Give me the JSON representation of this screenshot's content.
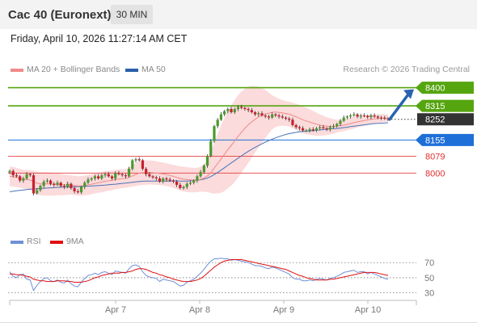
{
  "header": {
    "title": "Cac 40 (Euronext)",
    "timeframe": "30 MIN"
  },
  "timestamp": "Friday, April 10, 2026 11:27:14 AM CET",
  "credit": "Research © 2026 Trading Central",
  "colors": {
    "up_candle": "#4b9a2c",
    "down_candle": "#c8202f",
    "ma20": "#f08a8a",
    "ma50": "#4a72b8",
    "bollinger_fill": "#f9cccc",
    "resistance": "#55a50e",
    "support": "#1f6fd8",
    "support_minor": "#e23030",
    "current": "#333333",
    "rsi": "#6f8fd8",
    "rsi_ma": "#e01010",
    "arrow": "#2a64b0"
  },
  "chart_data": [
    {
      "type": "candlestick",
      "legend": [
        {
          "label": "MA 20 + Bollinger Bands",
          "color": "#f08a8a"
        },
        {
          "label": "MA 50",
          "color": "#2a5fa8"
        }
      ],
      "x_ticks": [
        "Apr 7",
        "Apr 8",
        "Apr 9",
        "Apr 10"
      ],
      "levels": [
        {
          "value": 8400,
          "label": "8400",
          "kind": "resistance"
        },
        {
          "value": 8315,
          "label": "8315",
          "kind": "resistance"
        },
        {
          "value": 8252,
          "label": "8252",
          "kind": "current"
        },
        {
          "value": 8155,
          "label": "8155",
          "kind": "support"
        },
        {
          "value": 8079,
          "label": "8079",
          "kind": "support-minor"
        },
        {
          "value": 8000,
          "label": "8000",
          "kind": "support-minor"
        }
      ],
      "projection": {
        "from": 8252,
        "to": 8400,
        "direction": "up"
      },
      "ylim": [
        7820,
        8440
      ],
      "close": [
        8010,
        7990,
        7985,
        7965,
        7975,
        7995,
        7990,
        7905,
        7920,
        7940,
        7960,
        7965,
        7950,
        7945,
        7955,
        7940,
        7935,
        7950,
        7930,
        7915,
        7910,
        7935,
        7955,
        7970,
        7975,
        7985,
        7975,
        7990,
        7995,
        7985,
        7975,
        8000,
        7995,
        7990,
        7985,
        8020,
        8060,
        8065,
        8060,
        8020,
        7995,
        7985,
        7980,
        7975,
        7960,
        7975,
        7970,
        7965,
        7960,
        7945,
        7930,
        7935,
        7950,
        7955,
        7965,
        7985,
        8005,
        8035,
        8080,
        8150,
        8220,
        8250,
        8275,
        8290,
        8300,
        8285,
        8300,
        8310,
        8305,
        8300,
        8295,
        8285,
        8275,
        8280,
        8270,
        8265,
        8260,
        8275,
        8270,
        8265,
        8260,
        8255,
        8250,
        8225,
        8215,
        8210,
        8200,
        8200,
        8205,
        8200,
        8210,
        8215,
        8210,
        8205,
        8215,
        8220,
        8230,
        8245,
        8260,
        8265,
        8270,
        8275,
        8265,
        8270,
        8268,
        8262,
        8270,
        8265,
        8260,
        8258,
        8255,
        8252
      ],
      "ma20": [
        7985,
        7983,
        7980,
        7976,
        7972,
        7970,
        7968,
        7960,
        7953,
        7950,
        7949,
        7950,
        7949,
        7947,
        7948,
        7947,
        7945,
        7945,
        7944,
        7942,
        7940,
        7940,
        7942,
        7945,
        7948,
        7952,
        7955,
        7958,
        7962,
        7964,
        7966,
        7970,
        7972,
        7974,
        7975,
        7980,
        7987,
        7994,
        8000,
        8002,
        8003,
        8003,
        8002,
        8000,
        7998,
        7996,
        7993,
        7989,
        7985,
        7980,
        7975,
        7972,
        7970,
        7968,
        7967,
        7968,
        7971,
        7977,
        7987,
        8002,
        8023,
        8045,
        8066,
        8088,
        8110,
        8130,
        8150,
        8172,
        8192,
        8210,
        8226,
        8240,
        8252,
        8263,
        8271,
        8277,
        8281,
        8285,
        8286,
        8284,
        8282,
        8279,
        8276,
        8270,
        8264,
        8257,
        8250,
        8244,
        8239,
        8234,
        8229,
        8225,
        8222,
        8220,
        8219,
        8219,
        8220,
        8222,
        8225,
        8228,
        8232,
        8236,
        8240,
        8243,
        8246,
        8249,
        8252,
        8254,
        8256,
        8257,
        8258,
        8258
      ],
      "ma50": [
        7913,
        7915,
        7917,
        7919,
        7921,
        7923,
        7925,
        7926,
        7927,
        7928,
        7929,
        7930,
        7931,
        7932,
        7933,
        7934,
        7935,
        7935,
        7936,
        7936,
        7937,
        7937,
        7938,
        7939,
        7940,
        7941,
        7942,
        7943,
        7944,
        7946,
        7947,
        7948,
        7950,
        7952,
        7953,
        7955,
        7957,
        7959,
        7961,
        7962,
        7963,
        7963,
        7963,
        7963,
        7963,
        7963,
        7963,
        7963,
        7964,
        7964,
        7963,
        7963,
        7963,
        7964,
        7965,
        7967,
        7969,
        7972,
        7977,
        7984,
        7993,
        8003,
        8014,
        8025,
        8037,
        8048,
        8059,
        8070,
        8081,
        8092,
        8102,
        8112,
        8121,
        8129,
        8137,
        8145,
        8152,
        8159,
        8165,
        8171,
        8176,
        8181,
        8185,
        8188,
        8191,
        8193,
        8195,
        8196,
        8198,
        8199,
        8201,
        8202,
        8204,
        8205,
        8207,
        8208,
        8209,
        8211,
        8213,
        8215,
        8218,
        8220,
        8222,
        8224,
        8226,
        8228,
        8230,
        8232,
        8233,
        8234,
        8235,
        8236
      ],
      "bb_width": [
        46,
        46,
        45,
        44,
        44,
        45,
        46,
        50,
        53,
        54,
        55,
        55,
        54,
        53,
        52,
        50,
        48,
        47,
        45,
        45,
        45,
        46,
        46,
        47,
        47,
        47,
        47,
        48,
        48,
        47,
        46,
        46,
        45,
        44,
        44,
        46,
        50,
        54,
        57,
        58,
        57,
        56,
        56,
        55,
        54,
        54,
        53,
        53,
        54,
        55,
        57,
        58,
        58,
        58,
        57,
        57,
        58,
        64,
        76,
        95,
        120,
        140,
        158,
        172,
        182,
        188,
        192,
        193,
        190,
        185,
        178,
        168,
        156,
        142,
        128,
        112,
        96,
        80,
        70,
        64,
        60,
        58,
        58,
        60,
        62,
        63,
        63,
        62,
        60,
        57,
        54,
        50,
        46,
        42,
        38,
        34,
        30,
        28,
        28,
        28,
        28,
        27,
        26,
        25,
        24,
        23,
        22,
        21,
        20,
        19,
        18,
        17
      ]
    },
    {
      "type": "line",
      "legend": [
        {
          "label": "RSI",
          "color": "#6f8fd8"
        },
        {
          "label": "9MA",
          "color": "#e01010"
        }
      ],
      "y_ticks": [
        "70",
        "50",
        "30"
      ],
      "ylim": [
        20,
        82
      ],
      "levels": [
        70,
        50,
        30
      ],
      "series": [
        {
          "name": "RSI",
          "values": [
            58,
            52,
            50,
            54,
            55,
            48,
            47,
            33,
            40,
            45,
            49,
            50,
            46,
            45,
            47,
            44,
            43,
            47,
            42,
            39,
            38,
            44,
            49,
            53,
            54,
            56,
            54,
            57,
            58,
            56,
            54,
            59,
            58,
            57,
            56,
            62,
            66,
            67,
            65,
            58,
            53,
            51,
            50,
            49,
            45,
            48,
            47,
            46,
            45,
            42,
            39,
            40,
            44,
            46,
            48,
            52,
            56,
            61,
            67,
            72,
            75,
            75,
            76,
            75,
            75,
            73,
            74,
            73,
            72,
            71,
            70,
            68,
            66,
            66,
            65,
            63,
            62,
            64,
            63,
            61,
            59,
            57,
            55,
            50,
            48,
            48,
            46,
            46,
            47,
            46,
            48,
            49,
            48,
            47,
            49,
            50,
            52,
            54,
            57,
            58,
            59,
            60,
            57,
            58,
            58,
            55,
            57,
            55,
            53,
            51,
            49,
            48
          ]
        },
        {
          "name": "9MA",
          "values": [
            55,
            55,
            54,
            54,
            53,
            52,
            51,
            48,
            47,
            46,
            46,
            45,
            45,
            45,
            46,
            46,
            46,
            45,
            45,
            44,
            44,
            44,
            45,
            46,
            48,
            50,
            51,
            53,
            54,
            55,
            56,
            56,
            56,
            57,
            57,
            58,
            59,
            61,
            62,
            62,
            61,
            59,
            57,
            56,
            54,
            53,
            51,
            50,
            48,
            47,
            46,
            45,
            45,
            45,
            46,
            47,
            49,
            52,
            56,
            60,
            64,
            67,
            70,
            72,
            73,
            74,
            74,
            74,
            74,
            73,
            72,
            71,
            70,
            69,
            68,
            67,
            66,
            65,
            64,
            63,
            62,
            61,
            59,
            57,
            55,
            53,
            52,
            50,
            49,
            48,
            47,
            47,
            47,
            47,
            48,
            48,
            49,
            50,
            51,
            52,
            53,
            54,
            55,
            56,
            57,
            57,
            57,
            57,
            56,
            55,
            54,
            53
          ]
        }
      ]
    }
  ]
}
